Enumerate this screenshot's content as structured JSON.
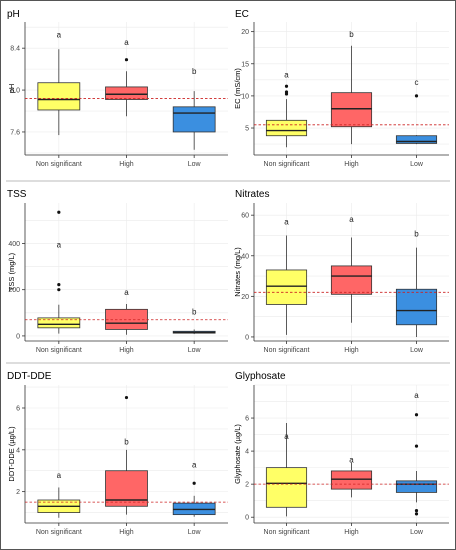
{
  "figure": {
    "colors": {
      "non_significant": "#ffff66",
      "high": "#ff6666",
      "low": "#3b8fe0",
      "reference_line": "#cc2222",
      "gridline": "#ebebeb"
    }
  },
  "chart_data": [
    {
      "type": "box",
      "title": "pH",
      "ylabel": "pH",
      "categories": [
        "Non significant",
        "High",
        "Low"
      ],
      "ylim": [
        7.38,
        8.65
      ],
      "yticks": [
        7.6,
        8.0,
        8.4
      ],
      "ytick_labels": [
        "7.6",
        "8.0",
        "8.4"
      ],
      "reference_line": 7.92,
      "boxes": [
        {
          "q1": 7.81,
          "median": 7.91,
          "q3": 8.07,
          "whisker_low": 7.57,
          "whisker_high": 8.39,
          "outliers": [],
          "letter": "a"
        },
        {
          "q1": 7.91,
          "median": 7.96,
          "q3": 8.03,
          "whisker_low": 7.75,
          "whisker_high": 8.18,
          "outliers": [
            8.29
          ],
          "letter": "a"
        },
        {
          "q1": 7.6,
          "median": 7.78,
          "q3": 7.84,
          "whisker_low": 7.43,
          "whisker_high": 7.99,
          "outliers": [],
          "letter": "b"
        }
      ],
      "letter_positions": [
        8.53,
        8.46,
        8.18
      ]
    },
    {
      "type": "box",
      "title": "EC",
      "ylabel": "EC (mS/cm)",
      "categories": [
        "Non significant",
        "High",
        "Low"
      ],
      "ylim": [
        0.8,
        21.5
      ],
      "yticks": [
        5,
        10,
        15,
        20
      ],
      "ytick_labels": [
        "5",
        "10",
        "15",
        "20"
      ],
      "reference_line": 5.5,
      "boxes": [
        {
          "q1": 3.8,
          "median": 4.6,
          "q3": 6.2,
          "whisker_low": 2.0,
          "whisker_high": 9.5,
          "outliers": [
            10.3,
            10.6,
            11.5
          ],
          "letter": "a"
        },
        {
          "q1": 5.2,
          "median": 8.0,
          "q3": 10.5,
          "whisker_low": 2.5,
          "whisker_high": 17.8,
          "outliers": [],
          "letter": "b"
        },
        {
          "q1": 2.6,
          "median": 2.9,
          "q3": 3.8,
          "whisker_low": 2.5,
          "whisker_high": 3.9,
          "outliers": [
            10.0
          ],
          "letter": "c"
        }
      ],
      "letter_positions": [
        13.3,
        19.6,
        12.2
      ]
    },
    {
      "type": "box",
      "title": "TSS",
      "ylabel": "TSS (mg/L)",
      "categories": [
        "Non significant",
        "High",
        "Low"
      ],
      "ylim": [
        -22,
        575
      ],
      "yticks": [
        0,
        200,
        400
      ],
      "ytick_labels": [
        "0",
        "200",
        "400"
      ],
      "reference_line": 70,
      "boxes": [
        {
          "q1": 35,
          "median": 50,
          "q3": 78,
          "whisker_low": 10,
          "whisker_high": 135,
          "outliers": [
            200,
            222,
            535
          ],
          "letter": "a"
        },
        {
          "q1": 28,
          "median": 55,
          "q3": 115,
          "whisker_low": 5,
          "whisker_high": 138,
          "outliers": [],
          "letter": "a"
        },
        {
          "q1": 12,
          "median": 15,
          "q3": 20,
          "whisker_low": 8,
          "whisker_high": 28,
          "outliers": [],
          "letter": "b"
        }
      ],
      "letter_positions": [
        395,
        190,
        105
      ]
    },
    {
      "type": "box",
      "title": "Nitrates",
      "ylabel": "Nitrates (mg/L)",
      "categories": [
        "Non significant",
        "High",
        "Low"
      ],
      "ylim": [
        -2,
        66
      ],
      "yticks": [
        0,
        20,
        40,
        60
      ],
      "ytick_labels": [
        "0",
        "20",
        "40",
        "60"
      ],
      "reference_line": 22,
      "boxes": [
        {
          "q1": 16,
          "median": 25,
          "q3": 33,
          "whisker_low": 1,
          "whisker_high": 50,
          "outliers": [],
          "letter": "a"
        },
        {
          "q1": 21,
          "median": 30,
          "q3": 35,
          "whisker_low": 7,
          "whisker_high": 49,
          "outliers": [],
          "letter": "a"
        },
        {
          "q1": 6,
          "median": 13,
          "q3": 23.5,
          "whisker_low": 0,
          "whisker_high": 44,
          "outliers": [],
          "letter": "b"
        }
      ],
      "letter_positions": [
        57,
        58,
        51
      ]
    },
    {
      "type": "box",
      "title": "DDT-DDE",
      "ylabel": "DDT-DDE (µg/L)",
      "categories": [
        "Non significant",
        "High",
        "Low"
      ],
      "ylim": [
        0.5,
        7.1
      ],
      "yticks": [
        2,
        4,
        6
      ],
      "ytick_labels": [
        "2",
        "4",
        "6"
      ],
      "reference_line": 1.5,
      "boxes": [
        {
          "q1": 1.0,
          "median": 1.3,
          "q3": 1.6,
          "whisker_low": 0.75,
          "whisker_high": 2.2,
          "outliers": [],
          "letter": "a"
        },
        {
          "q1": 1.3,
          "median": 1.6,
          "q3": 3.0,
          "whisker_low": 0.9,
          "whisker_high": 4.0,
          "outliers": [
            6.5
          ],
          "letter": "b"
        },
        {
          "q1": 0.9,
          "median": 1.15,
          "q3": 1.45,
          "whisker_low": 0.8,
          "whisker_high": 1.8,
          "outliers": [
            2.4
          ],
          "letter": "a"
        }
      ],
      "letter_positions": [
        2.8,
        4.4,
        3.3
      ]
    },
    {
      "type": "box",
      "title": "Glyphosate",
      "ylabel": "Glyphosate (µg/L)",
      "categories": [
        "Non significant",
        "High",
        "Low"
      ],
      "ylim": [
        -0.35,
        8.0
      ],
      "yticks": [
        0,
        2,
        4,
        6
      ],
      "ytick_labels": [
        "0",
        "2",
        "4",
        "6"
      ],
      "reference_line": 2.0,
      "boxes": [
        {
          "q1": 0.6,
          "median": 2.05,
          "q3": 3.0,
          "whisker_low": 0.05,
          "whisker_high": 5.7,
          "outliers": [],
          "letter": "a"
        },
        {
          "q1": 1.7,
          "median": 2.3,
          "q3": 2.8,
          "whisker_low": 1.2,
          "whisker_high": 3.3,
          "outliers": [],
          "letter": "a"
        },
        {
          "q1": 1.5,
          "median": 2.0,
          "q3": 2.2,
          "whisker_low": 0.9,
          "whisker_high": 2.8,
          "outliers": [
            0.2,
            0.4,
            4.3,
            6.2
          ],
          "letter": "a"
        }
      ],
      "letter_positions": [
        4.9,
        3.5,
        7.4
      ]
    }
  ]
}
